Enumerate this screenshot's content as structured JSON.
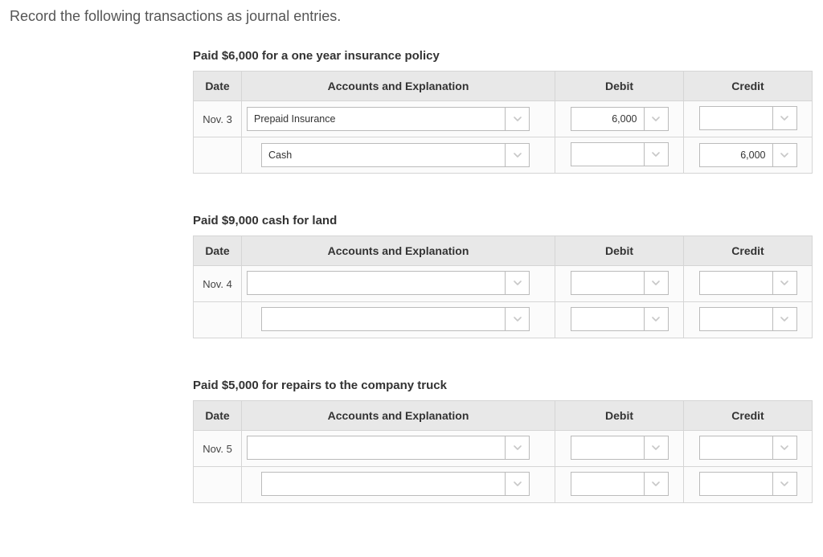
{
  "instruction": "Record the following transactions as journal entries.",
  "headers": {
    "date": "Date",
    "accounts": "Accounts and Explanation",
    "debit": "Debit",
    "credit": "Credit"
  },
  "colors": {
    "header_bg": "#e8e8e8",
    "border": "#d5d5d5",
    "chevron": "#c8c8c8",
    "text": "#333333"
  },
  "sections": [
    {
      "title": "Paid $6,000 for a one year insurance policy",
      "rows": [
        {
          "date": "Nov. 3",
          "account": "Prepaid Insurance",
          "indent": false,
          "debit": "6,000",
          "credit": ""
        },
        {
          "date": "",
          "account": "Cash",
          "indent": true,
          "debit": "",
          "credit": "6,000"
        }
      ]
    },
    {
      "title": "Paid $9,000 cash for land",
      "rows": [
        {
          "date": "Nov. 4",
          "account": "",
          "indent": false,
          "debit": "",
          "credit": ""
        },
        {
          "date": "",
          "account": "",
          "indent": true,
          "debit": "",
          "credit": ""
        }
      ]
    },
    {
      "title": "Paid $5,000 for repairs to the company truck",
      "rows": [
        {
          "date": "Nov. 5",
          "account": "",
          "indent": false,
          "debit": "",
          "credit": ""
        },
        {
          "date": "",
          "account": "",
          "indent": true,
          "debit": "",
          "credit": ""
        }
      ]
    }
  ]
}
